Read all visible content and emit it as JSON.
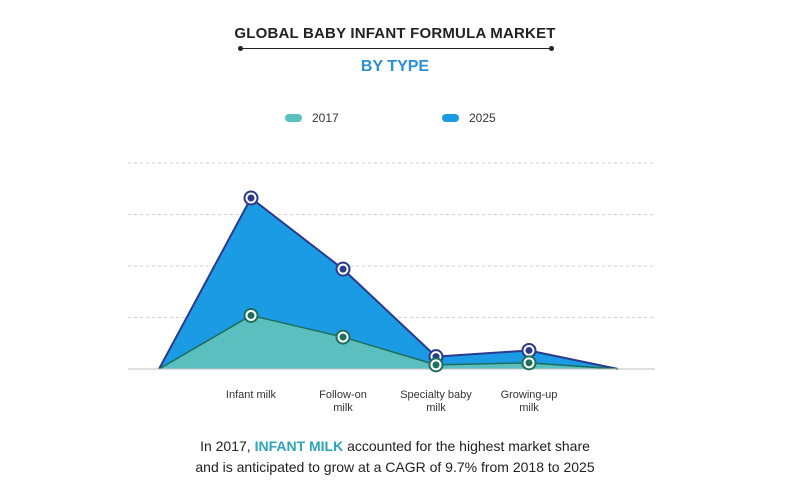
{
  "chart_data": {
    "type": "area",
    "title": "GLOBAL BABY INFANT FORMULA MARKET",
    "subtitle": "BY TYPE",
    "categories": [
      [
        "Infant milk"
      ],
      [
        "Follow-on",
        "milk"
      ],
      [
        "Specialty baby",
        "milk"
      ],
      [
        "Growing-up",
        "milk"
      ]
    ],
    "series": [
      {
        "name": "2017",
        "values": [
          52,
          31,
          4,
          6
        ],
        "color": "#5bbfbf"
      },
      {
        "name": "2025",
        "values": [
          166,
          97,
          12,
          18
        ],
        "color": "#1b9be3"
      }
    ],
    "ylim": [
      0,
      200
    ],
    "grid": true,
    "legend_position": "top-center",
    "colors": {
      "line": "#2a3a8c",
      "marker_2017": "#1d6e5a",
      "marker_2025": "#2a3a8c",
      "title_accent": "#2b8fd6",
      "highlight": "#2aa6b8"
    }
  },
  "caption": {
    "line1_pre": "In 2017, ",
    "line1_highlight": "INFANT MILK",
    "line1_post": " accounted for the highest market share",
    "line2": "and is anticipated to grow at a CAGR of 9.7% from 2018 to 2025"
  }
}
